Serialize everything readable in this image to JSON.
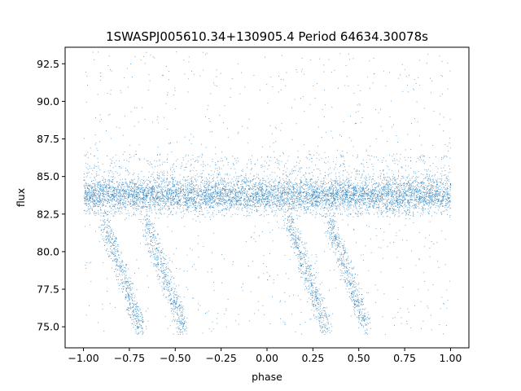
{
  "chart_data": {
    "type": "scatter",
    "title": "1SWASPJ005610.34+130905.4 Period 64634.30078s",
    "xlabel": "phase",
    "ylabel": "flux",
    "xlim": [
      -1.1,
      1.1
    ],
    "ylim": [
      73.6,
      93.6
    ],
    "xticks": [
      -1.0,
      -0.75,
      -0.5,
      -0.25,
      0.0,
      0.25,
      0.5,
      0.75,
      1.0
    ],
    "xtick_labels": [
      "−1.00",
      "−0.75",
      "−0.50",
      "−0.25",
      "0.00",
      "0.25",
      "0.50",
      "0.75",
      "1.00"
    ],
    "yticks": [
      75.0,
      77.5,
      80.0,
      82.5,
      85.0,
      87.5,
      90.0,
      92.5
    ],
    "ytick_labels": [
      "75.0",
      "77.5",
      "80.0",
      "82.5",
      "85.0",
      "87.5",
      "90.0",
      "92.5"
    ],
    "grid": false,
    "marker_color": "#1f77b4",
    "phase_range": [
      -1.0,
      1.0
    ],
    "flux_range": [
      74.5,
      93.4
    ],
    "baseline_flux": 83.8,
    "core_band": [
      82.2,
      85.5
    ],
    "eclipse_phases": [
      -0.68,
      -0.45,
      0.33,
      0.55
    ],
    "eclipse_min_flux": 74.6,
    "repeat_period_phase": 1.0
  }
}
